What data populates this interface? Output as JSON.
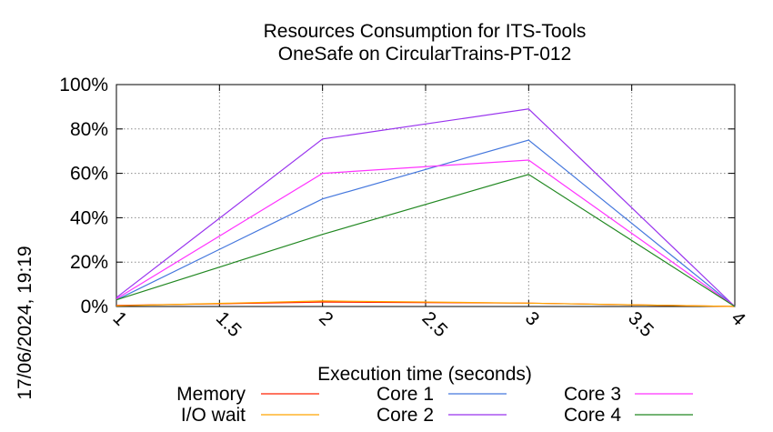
{
  "chart_data": {
    "type": "line",
    "title": "Resources Consumption for ITS-Tools",
    "subtitle": "OneSafe on CircularTrains-PT-012",
    "xlabel": "Execution time (seconds)",
    "ylabel": "",
    "side_label": "17/06/2024, 19:19",
    "xlim": [
      1,
      4
    ],
    "ylim": [
      0,
      100
    ],
    "x_ticks": [
      {
        "value": 1,
        "label": "1"
      },
      {
        "value": 1.5,
        "label": "1.5"
      },
      {
        "value": 2,
        "label": "2"
      },
      {
        "value": 2.5,
        "label": "2.5"
      },
      {
        "value": 3,
        "label": "3"
      },
      {
        "value": 3.5,
        "label": "3.5"
      },
      {
        "value": 4,
        "label": "4"
      }
    ],
    "y_ticks": [
      {
        "value": 0,
        "label": "0%"
      },
      {
        "value": 20,
        "label": "20%"
      },
      {
        "value": 40,
        "label": "40%"
      },
      {
        "value": 60,
        "label": "60%"
      },
      {
        "value": 80,
        "label": "80%"
      },
      {
        "value": 100,
        "label": "100%"
      }
    ],
    "grid": true,
    "legend_position": "bottom",
    "x": [
      1,
      2,
      3,
      4
    ],
    "series": [
      {
        "name": "Memory",
        "color": "#ff2200",
        "values": [
          0.5,
          2.0,
          1.5,
          0
        ]
      },
      {
        "name": "I/O wait",
        "color": "#ffa500",
        "values": [
          0.3,
          2.5,
          1.5,
          0
        ]
      },
      {
        "name": "Core 1",
        "color": "#4477dd",
        "values": [
          3,
          48.5,
          75,
          0
        ]
      },
      {
        "name": "Core 2",
        "color": "#9933ee",
        "values": [
          4,
          75.5,
          89,
          0
        ]
      },
      {
        "name": "Core 3",
        "color": "#ff33ff",
        "values": [
          3.5,
          60,
          66,
          0
        ]
      },
      {
        "name": "Core 4",
        "color": "#228822",
        "values": [
          3,
          32.5,
          59.5,
          0
        ]
      }
    ]
  }
}
